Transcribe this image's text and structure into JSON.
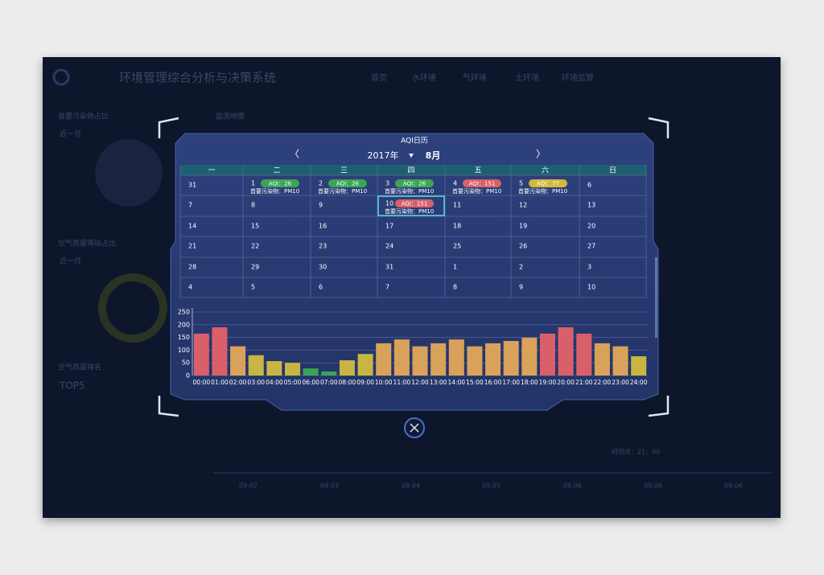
{
  "background": {
    "title": "环境管理综合分析与决策系统",
    "nav": [
      "首页",
      "水环境",
      "气环境",
      "土环境",
      "环境监管"
    ],
    "panels": [
      "首要污染物占比",
      "近一月",
      "监测地图",
      "空气质量等级占比",
      "近一月",
      "空气质量排名",
      "TOP5"
    ],
    "timeline": [
      "09.02",
      "09.03",
      "09.04",
      "09.05",
      "09.06",
      "09.06",
      "09.06"
    ],
    "time_point": "时间点：21：00"
  },
  "calendar": {
    "title": "AQI日历",
    "year": "2017年",
    "month": "8月",
    "prev": "〈",
    "next": "〉",
    "weekdays": [
      "一",
      "二",
      "三",
      "四",
      "五",
      "六",
      "日"
    ],
    "weeks": [
      [
        {
          "day": "31",
          "muted": true
        },
        {
          "day": "1",
          "aqi": "AQI：26",
          "badge_color": "#3aa655",
          "pollutant": "首要污染物：PM10"
        },
        {
          "day": "2",
          "aqi": "AQI：26",
          "badge_color": "#3aa655",
          "pollutant": "首要污染物：PM10"
        },
        {
          "day": "3",
          "aqi": "AQI：26",
          "badge_color": "#3aa655",
          "pollutant": "首要污染物：PM10"
        },
        {
          "day": "4",
          "aqi": "AQI：151",
          "badge_color": "#d9606b",
          "pollutant": "首要污染物：PM10"
        },
        {
          "day": "5",
          "aqi": "AQI：77",
          "badge_color": "#d4b83c",
          "pollutant": "首要污染物：PM10"
        },
        {
          "day": "6"
        }
      ],
      [
        {
          "day": "7"
        },
        {
          "day": "8"
        },
        {
          "day": "9"
        },
        {
          "day": "10",
          "aqi": "AQI：151",
          "badge_color": "#d9606b",
          "pollutant": "首要污染物：PM10",
          "selected": true
        },
        {
          "day": "11"
        },
        {
          "day": "12"
        },
        {
          "day": "13"
        }
      ],
      [
        {
          "day": "14"
        },
        {
          "day": "15"
        },
        {
          "day": "16"
        },
        {
          "day": "17"
        },
        {
          "day": "18"
        },
        {
          "day": "19"
        },
        {
          "day": "20"
        }
      ],
      [
        {
          "day": "21"
        },
        {
          "day": "22"
        },
        {
          "day": "23"
        },
        {
          "day": "24"
        },
        {
          "day": "25"
        },
        {
          "day": "26"
        },
        {
          "day": "27"
        }
      ],
      [
        {
          "day": "28"
        },
        {
          "day": "29"
        },
        {
          "day": "30"
        },
        {
          "day": "31"
        },
        {
          "day": "1",
          "muted": true
        },
        {
          "day": "2",
          "muted": true
        },
        {
          "day": "3",
          "muted": true
        }
      ],
      [
        {
          "day": "4",
          "muted": true
        },
        {
          "day": "5",
          "muted": true
        },
        {
          "day": "6",
          "muted": true
        },
        {
          "day": "7",
          "muted": true
        },
        {
          "day": "8",
          "muted": true
        },
        {
          "day": "9",
          "muted": true
        },
        {
          "day": "10",
          "muted": true
        }
      ]
    ]
  },
  "chart_data": {
    "type": "bar",
    "categories": [
      "00:00",
      "01:00",
      "02:00",
      "03:00",
      "04:00",
      "05:00",
      "06:00",
      "07:00",
      "08:00",
      "09:00",
      "10:00",
      "11:00",
      "12:00",
      "13:00",
      "14:00",
      "15:00",
      "16:00",
      "17:00",
      "18:00",
      "19:00",
      "20:00",
      "21:00",
      "22:00",
      "23:00",
      "24:00"
    ],
    "values": [
      165,
      190,
      115,
      80,
      57,
      50,
      28,
      16,
      60,
      85,
      127,
      142,
      115,
      127,
      142,
      115,
      127,
      136,
      149,
      165,
      190,
      165,
      127,
      115,
      76
    ],
    "colors": [
      "#d9606b",
      "#d9606b",
      "#d9a25a",
      "#c8b544",
      "#c8b544",
      "#c8b544",
      "#3aa655",
      "#3aa655",
      "#c8b544",
      "#c8b544",
      "#d9a25a",
      "#d9a25a",
      "#d9a25a",
      "#d9a25a",
      "#d9a25a",
      "#d9a25a",
      "#d9a25a",
      "#d9a25a",
      "#d9a25a",
      "#d9606b",
      "#d9606b",
      "#d9606b",
      "#d9a25a",
      "#d9a25a",
      "#c8b544"
    ],
    "ylim": [
      0,
      250
    ],
    "yticks": [
      0,
      50,
      100,
      150,
      200,
      250
    ],
    "grid": true
  }
}
